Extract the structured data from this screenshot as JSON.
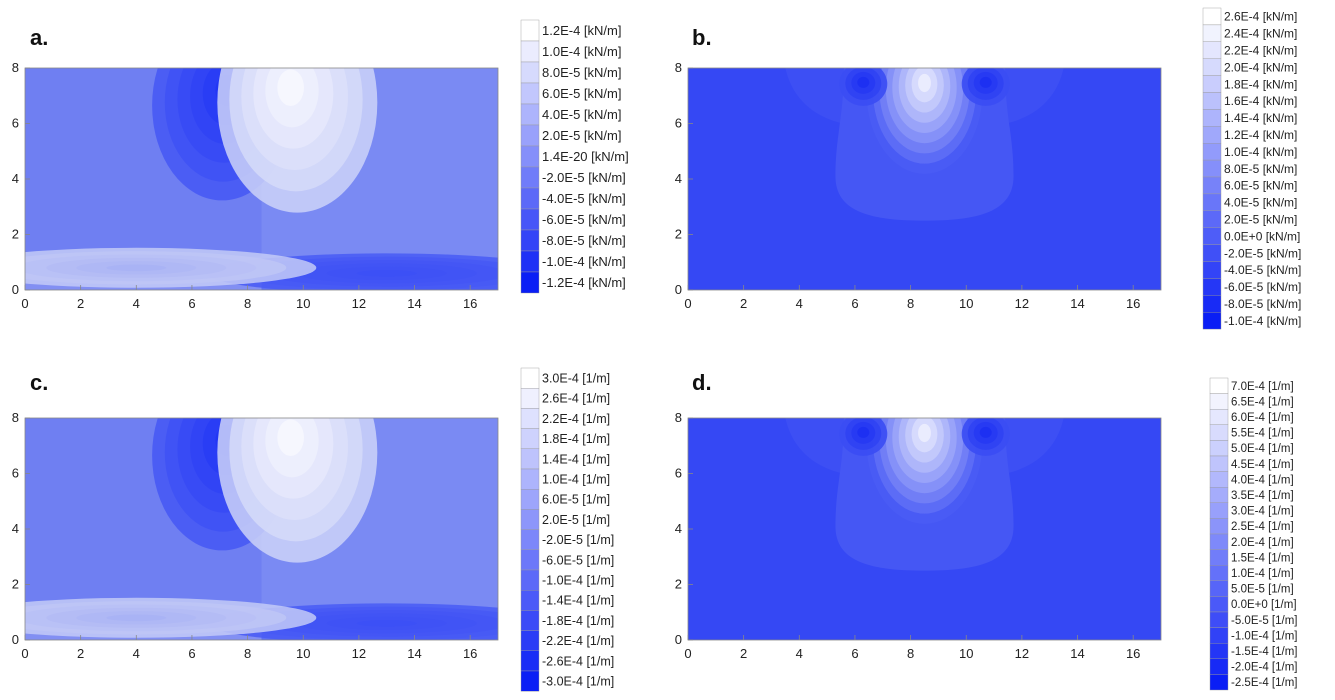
{
  "chart_data": [
    {
      "type": "heatmap",
      "panel_label": "a.",
      "xlim": [
        0,
        17
      ],
      "ylim": [
        0,
        8
      ],
      "xticks": [
        "0",
        "2",
        "4",
        "6",
        "8",
        "10",
        "12",
        "14",
        "16"
      ],
      "yticks": [
        "0",
        "2",
        "4",
        "6",
        "8"
      ],
      "legend": [
        "1.2E-4 [kN/m]",
        "1.0E-4 [kN/m]",
        "8.0E-5 [kN/m]",
        "6.0E-5 [kN/m]",
        "4.0E-5 [kN/m]",
        "2.0E-5 [kN/m]",
        "1.4E-20 [kN/m]",
        "-2.0E-5 [kN/m]",
        "-4.0E-5 [kN/m]",
        "-6.0E-5 [kN/m]",
        "-8.0E-5 [kN/m]",
        "-1.0E-4 [kN/m]",
        "-1.2E-4 [kN/m]"
      ],
      "pattern": "antisymmetric",
      "background_color": "#6f7ff2",
      "regions": [
        {
          "x": 7.3,
          "y": 7.3,
          "kind": "min",
          "color": "#1a2ef5"
        },
        {
          "x": 9.5,
          "y": 7.4,
          "kind": "max",
          "color": "#ffffff"
        },
        {
          "x": 13.0,
          "y": 0.6,
          "kind": "min",
          "color": "#3a4ef6"
        },
        {
          "x": 4.0,
          "y": 0.8,
          "kind": "max",
          "color": "#a3adf4"
        }
      ]
    },
    {
      "type": "heatmap",
      "panel_label": "b.",
      "xlim": [
        0,
        17
      ],
      "ylim": [
        0,
        8
      ],
      "xticks": [
        "0",
        "2",
        "4",
        "6",
        "8",
        "10",
        "12",
        "14",
        "16"
      ],
      "yticks": [
        "0",
        "2",
        "4",
        "6",
        "8"
      ],
      "legend": [
        "2.6E-4 [kN/m]",
        "2.4E-4 [kN/m]",
        "2.2E-4 [kN/m]",
        "2.0E-4 [kN/m]",
        "1.8E-4 [kN/m]",
        "1.6E-4 [kN/m]",
        "1.4E-4 [kN/m]",
        "1.2E-4 [kN/m]",
        "1.0E-4 [kN/m]",
        "8.0E-5 [kN/m]",
        "6.0E-5 [kN/m]",
        "4.0E-5 [kN/m]",
        "2.0E-5 [kN/m]",
        "0.0E+0 [kN/m]",
        "-2.0E-5 [kN/m]",
        "-4.0E-5 [kN/m]",
        "-6.0E-5 [kN/m]",
        "-8.0E-5 [kN/m]",
        "-1.0E-4 [kN/m]"
      ],
      "pattern": "symmetric",
      "background_color": "#3548f4",
      "regions": [
        {
          "x": 8.5,
          "y": 7.5,
          "kind": "max",
          "color": "#ffffff"
        },
        {
          "x": 6.3,
          "y": 7.5,
          "kind": "min",
          "color": "#1f33f2"
        },
        {
          "x": 10.7,
          "y": 7.5,
          "kind": "min",
          "color": "#1f33f2"
        }
      ]
    },
    {
      "type": "heatmap",
      "panel_label": "c.",
      "xlim": [
        0,
        17
      ],
      "ylim": [
        0,
        8
      ],
      "xticks": [
        "0",
        "2",
        "4",
        "6",
        "8",
        "10",
        "12",
        "14",
        "16"
      ],
      "yticks": [
        "0",
        "2",
        "4",
        "6",
        "8"
      ],
      "legend": [
        "3.0E-4 [1/m]",
        "2.6E-4 [1/m]",
        "2.2E-4 [1/m]",
        "1.8E-4 [1/m]",
        "1.4E-4 [1/m]",
        "1.0E-4 [1/m]",
        "6.0E-5 [1/m]",
        "2.0E-5 [1/m]",
        "-2.0E-5 [1/m]",
        "-6.0E-5 [1/m]",
        "-1.0E-4 [1/m]",
        "-1.4E-4 [1/m]",
        "-1.8E-4 [1/m]",
        "-2.2E-4 [1/m]",
        "-2.6E-4 [1/m]",
        "-3.0E-4 [1/m]"
      ],
      "pattern": "antisymmetric",
      "background_color": "#6f7ff2",
      "regions": [
        {
          "x": 7.3,
          "y": 7.3,
          "kind": "min",
          "color": "#1a2ef5"
        },
        {
          "x": 9.5,
          "y": 7.4,
          "kind": "max",
          "color": "#ffffff"
        },
        {
          "x": 13.0,
          "y": 0.6,
          "kind": "min",
          "color": "#3a4ef6"
        },
        {
          "x": 4.0,
          "y": 0.8,
          "kind": "max",
          "color": "#a3adf4"
        }
      ]
    },
    {
      "type": "heatmap",
      "panel_label": "d.",
      "xlim": [
        0,
        17
      ],
      "ylim": [
        0,
        8
      ],
      "xticks": [
        "0",
        "2",
        "4",
        "6",
        "8",
        "10",
        "12",
        "14",
        "16"
      ],
      "yticks": [
        "0",
        "2",
        "4",
        "6",
        "8"
      ],
      "legend": [
        "7.0E-4 [1/m]",
        "6.5E-4 [1/m]",
        "6.0E-4 [1/m]",
        "5.5E-4 [1/m]",
        "5.0E-4 [1/m]",
        "4.5E-4 [1/m]",
        "4.0E-4 [1/m]",
        "3.5E-4 [1/m]",
        "3.0E-4 [1/m]",
        "2.5E-4 [1/m]",
        "2.0E-4 [1/m]",
        "1.5E-4 [1/m]",
        "1.0E-4 [1/m]",
        "5.0E-5 [1/m]",
        "0.0E+0 [1/m]",
        "-5.0E-5 [1/m]",
        "-1.0E-4 [1/m]",
        "-1.5E-4 [1/m]",
        "-2.0E-4 [1/m]",
        "-2.5E-4 [1/m]"
      ],
      "pattern": "symmetric",
      "background_color": "#3548f4",
      "regions": [
        {
          "x": 8.5,
          "y": 7.5,
          "kind": "max",
          "color": "#ffffff"
        },
        {
          "x": 6.3,
          "y": 7.5,
          "kind": "min",
          "color": "#1f33f2"
        },
        {
          "x": 10.7,
          "y": 7.5,
          "kind": "min",
          "color": "#1f33f2"
        }
      ]
    }
  ]
}
